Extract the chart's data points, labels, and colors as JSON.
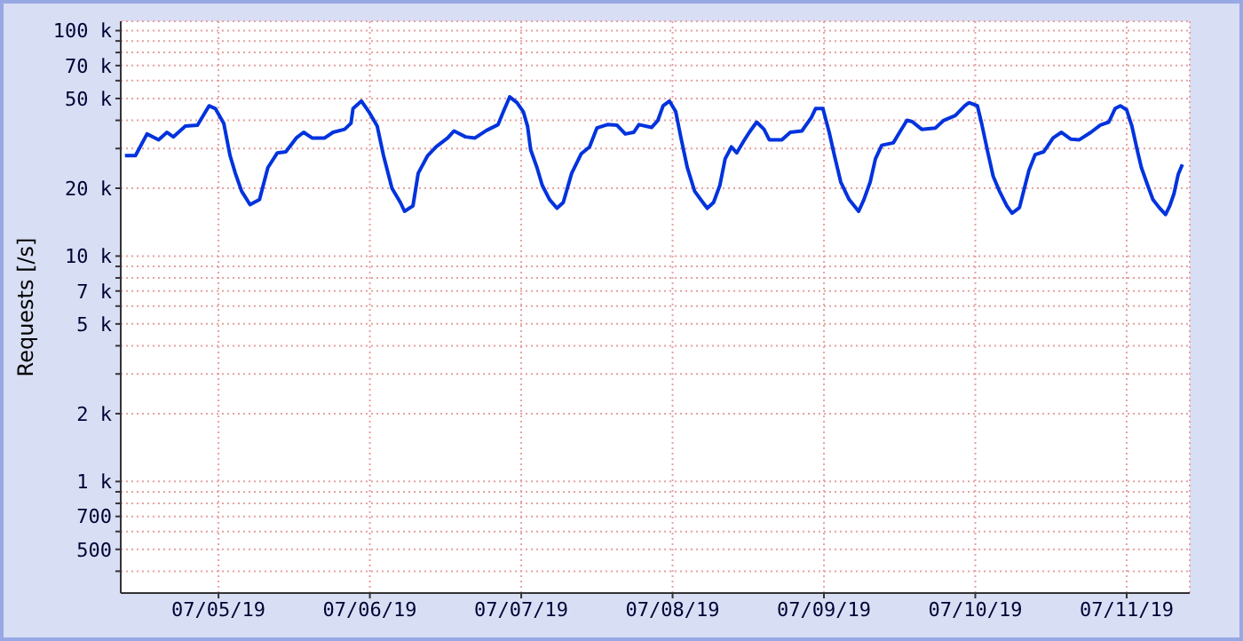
{
  "chart_data": {
    "type": "line",
    "ylabel": "Requests [/s]",
    "log": "y",
    "grid": true,
    "marker": "none",
    "line_style": "solid",
    "xlim": [
      "--07-04T08:30",
      "--07-11T10:00"
    ],
    "xticks": [
      {
        "value": "--07-05T00:00",
        "label": "07/05/19"
      },
      {
        "value": "--07-06T00:00",
        "label": "07/06/19"
      },
      {
        "value": "--07-07T00:00",
        "label": "07/07/19"
      },
      {
        "value": "--07-08T00:00",
        "label": "07/08/19"
      },
      {
        "value": "--07-09T00:00",
        "label": "07/09/19"
      },
      {
        "value": "--07-10T00:00",
        "label": "07/10/19"
      },
      {
        "value": "--07-11T00:00",
        "label": "07/11/19"
      }
    ],
    "ylim": [
      320,
      110000
    ],
    "yticks": [
      {
        "value": 400,
        "label": null
      },
      {
        "value": 500,
        "label": "500"
      },
      {
        "value": 600,
        "label": null
      },
      {
        "value": 700,
        "label": "700"
      },
      {
        "value": 800,
        "label": null
      },
      {
        "value": 900,
        "label": null
      },
      {
        "value": 1000,
        "label": "1 k"
      },
      {
        "value": 2000,
        "label": "2 k"
      },
      {
        "value": 3000,
        "label": null
      },
      {
        "value": 4000,
        "label": null
      },
      {
        "value": 5000,
        "label": "5 k"
      },
      {
        "value": 6000,
        "label": null
      },
      {
        "value": 7000,
        "label": "7 k"
      },
      {
        "value": 8000,
        "label": null
      },
      {
        "value": 9000,
        "label": null
      },
      {
        "value": 10000,
        "label": "10 k"
      },
      {
        "value": 20000,
        "label": "20 k"
      },
      {
        "value": 30000,
        "label": null
      },
      {
        "value": 40000,
        "label": null
      },
      {
        "value": 50000,
        "label": "50 k"
      },
      {
        "value": 60000,
        "label": null
      },
      {
        "value": 70000,
        "label": "70 k"
      },
      {
        "value": 80000,
        "label": null
      },
      {
        "value": 90000,
        "label": null
      },
      {
        "value": 100000,
        "label": "100 k"
      }
    ],
    "x": [
      "--07-04T09:10",
      "--07-04T10:50",
      "--07-04T12:40",
      "--07-04T14:30",
      "--07-04T15:50",
      "--07-04T16:50",
      "--07-04T18:45",
      "--07-04T20:40",
      "--07-04T22:30",
      "--07-04T23:30",
      "--07-05T00:50",
      "--07-05T01:50",
      "--07-05T02:40",
      "--07-05T03:40",
      "--07-05T05:00",
      "--07-05T06:30",
      "--07-05T07:50",
      "--07-05T09:20",
      "--07-05T10:40",
      "--07-05T12:20",
      "--07-05T13:30",
      "--07-05T14:50",
      "--07-05T16:50",
      "--07-05T18:10",
      "--07-05T20:00",
      "--07-05T21:00",
      "--07-05T21:20",
      "--07-05T22:40",
      "--07-05T23:50",
      "--07-06T01:10",
      "--07-06T02:10",
      "--07-06T03:30",
      "--07-06T04:50",
      "--07-06T05:30",
      "--07-06T06:50",
      "--07-06T07:40",
      "--07-06T09:10",
      "--07-06T10:30",
      "--07-06T12:20",
      "--07-06T13:20",
      "--07-06T15:10",
      "--07-06T16:40",
      "--07-06T18:30",
      "--07-06T20:20",
      "--07-06T21:10",
      "--07-06T22:10",
      "--07-06T23:20",
      "--07-07T00:20",
      "--07-07T01:00",
      "--07-07T01:30",
      "--07-07T02:30",
      "--07-07T03:20",
      "--07-07T04:30",
      "--07-07T05:40",
      "--07-07T06:40",
      "--07-07T08:00",
      "--07-07T09:30",
      "--07-07T10:50",
      "--07-07T12:00",
      "--07-07T13:40",
      "--07-07T15:10",
      "--07-07T16:30",
      "--07-07T17:50",
      "--07-07T18:40",
      "--07-07T20:40",
      "--07-07T21:40",
      "--07-07T22:30",
      "--07-07T23:30",
      "--07-08T00:30",
      "--07-08T01:20",
      "--07-08T02:20",
      "--07-08T03:30",
      "--07-08T04:40",
      "--07-08T05:30",
      "--07-08T06:30",
      "--07-08T07:30",
      "--07-08T08:20",
      "--07-08T09:20",
      "--07-08T10:10",
      "--07-08T11:10",
      "--07-08T12:10",
      "--07-08T13:20",
      "--07-08T14:30",
      "--07-08T15:20",
      "--07-08T17:20",
      "--07-08T18:40",
      "--07-08T20:30",
      "--07-08T22:00",
      "--07-08T22:40",
      "--07-08T23:50",
      "--07-09T00:50",
      "--07-09T01:40",
      "--07-09T02:40",
      "--07-09T04:00",
      "--07-09T05:30",
      "--07-09T06:20",
      "--07-09T07:20",
      "--07-09T08:10",
      "--07-09T09:10",
      "--07-09T11:00",
      "--07-09T12:00",
      "--07-09T13:10",
      "--07-09T14:00",
      "--07-09T15:30",
      "--07-09T17:40",
      "--07-09T19:00",
      "--07-09T20:50",
      "--07-09T22:20",
      "--07-09T23:00",
      "--07-10T00:20",
      "--07-10T01:00",
      "--07-10T02:00",
      "--07-10T02:50",
      "--07-10T03:50",
      "--07-10T05:00",
      "--07-10T05:50",
      "--07-10T07:00",
      "--07-10T07:40",
      "--07-10T08:30",
      "--07-10T09:30",
      "--07-10T10:50",
      "--07-10T12:20",
      "--07-10T13:40",
      "--07-10T15:10",
      "--07-10T16:30",
      "--07-10T18:20",
      "--07-10T19:50",
      "--07-10T21:10",
      "--07-10T22:10",
      "--07-10T23:00",
      "--07-11T00:00",
      "--07-11T00:50",
      "--07-11T01:40",
      "--07-11T02:20",
      "--07-11T03:20",
      "--07-11T04:10",
      "--07-11T05:10",
      "--07-11T06:10",
      "--07-11T06:50",
      "--07-11T07:30",
      "--07-11T08:10",
      "--07-11T08:50"
    ],
    "series": [
      {
        "color": "#0033dd",
        "values": [
          27900,
          27900,
          34800,
          32800,
          35400,
          33800,
          37700,
          38100,
          46400,
          45100,
          38800,
          27900,
          23300,
          19400,
          16900,
          17800,
          24700,
          28700,
          29000,
          33400,
          35400,
          33400,
          33400,
          35400,
          36500,
          38800,
          45100,
          48700,
          43700,
          37700,
          27900,
          20000,
          17300,
          15800,
          16700,
          23300,
          27900,
          30500,
          33400,
          35900,
          33800,
          33400,
          36100,
          38300,
          43700,
          50800,
          47900,
          43700,
          37700,
          29600,
          24700,
          20600,
          17800,
          16300,
          17300,
          23300,
          28400,
          30500,
          37000,
          38300,
          38100,
          34800,
          35400,
          38300,
          37200,
          40000,
          46400,
          48700,
          43700,
          33400,
          24700,
          19400,
          17500,
          16300,
          17300,
          20600,
          27000,
          30500,
          28700,
          32000,
          35400,
          39300,
          36500,
          32800,
          32800,
          35400,
          35900,
          41200,
          45100,
          45100,
          35400,
          27900,
          21300,
          17800,
          15800,
          17800,
          21300,
          27000,
          31000,
          31800,
          35400,
          40000,
          39500,
          36500,
          37000,
          40000,
          42000,
          46400,
          47900,
          46400,
          38800,
          28700,
          22600,
          19400,
          16700,
          15500,
          16400,
          19400,
          24000,
          28200,
          29000,
          33400,
          35400,
          33000,
          32800,
          35400,
          38100,
          39300,
          45100,
          46400,
          44500,
          37700,
          29600,
          24700,
          20600,
          17800,
          16400,
          15300,
          16700,
          18900,
          23000,
          25500
        ]
      }
    ]
  }
}
